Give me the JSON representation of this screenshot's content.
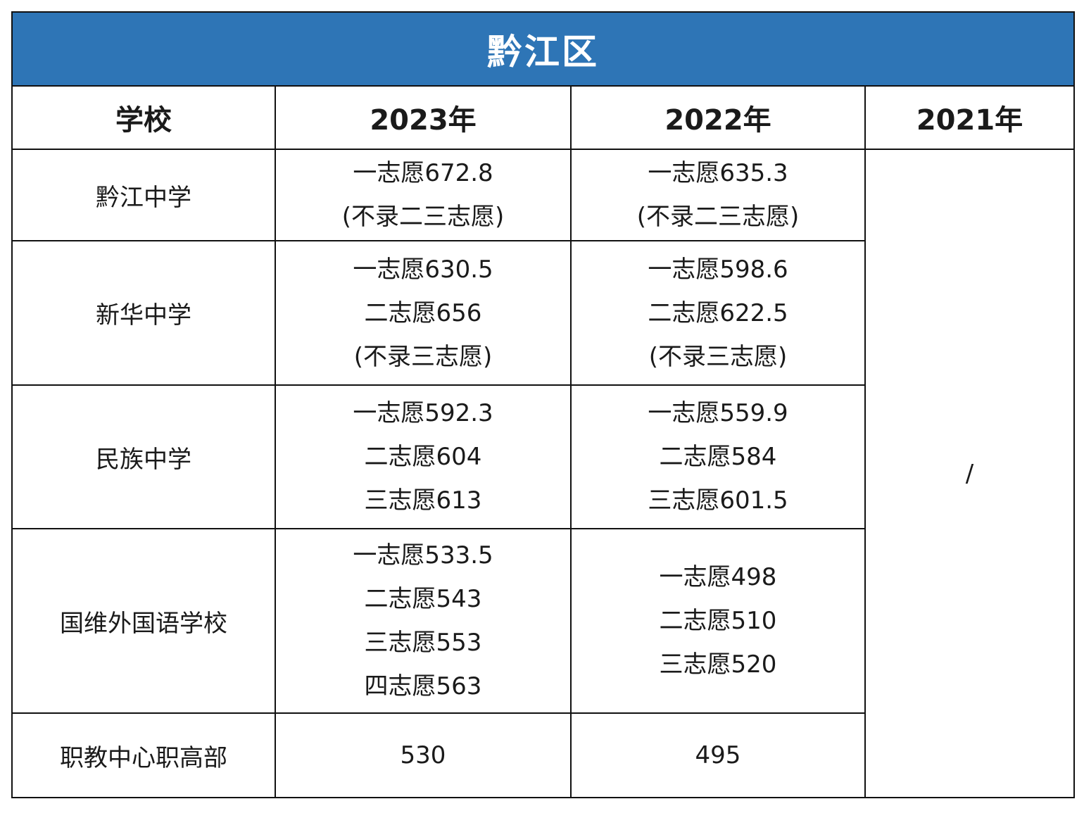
{
  "title": "黔江区",
  "headers": {
    "school": "学校",
    "y2023": "2023年",
    "y2022": "2022年",
    "y2021": "2021年"
  },
  "rows": [
    {
      "school": "黔江中学",
      "y2023": [
        "一志愿672.8",
        "(不录二三志愿)"
      ],
      "y2022": [
        "一志愿635.3",
        "(不录二三志愿)"
      ]
    },
    {
      "school": "新华中学",
      "y2023": [
        "一志愿630.5",
        "二志愿656",
        "(不录三志愿)"
      ],
      "y2022": [
        "一志愿598.6",
        "二志愿622.5",
        "(不录三志愿)"
      ]
    },
    {
      "school": "民族中学",
      "y2023": [
        "一志愿592.3",
        "二志愿604",
        "三志愿613"
      ],
      "y2022": [
        "一志愿559.9",
        "二志愿584",
        "三志愿601.5"
      ]
    },
    {
      "school": "国维外国语学校",
      "y2023": [
        "一志愿533.5",
        "二志愿543",
        "三志愿553",
        "四志愿563"
      ],
      "y2022": [
        "一志愿498",
        "二志愿510",
        "三志愿520"
      ]
    },
    {
      "school": "职教中心职高部",
      "y2023": [
        "530"
      ],
      "y2022": [
        "495"
      ]
    }
  ],
  "y2021_value": "/"
}
